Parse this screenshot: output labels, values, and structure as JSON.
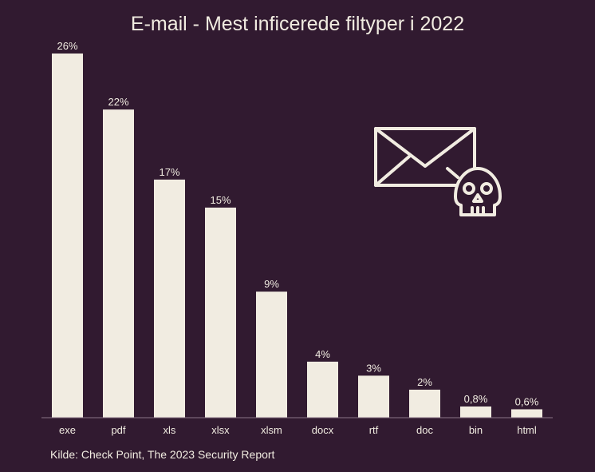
{
  "chart_data": {
    "type": "bar",
    "title": "E-mail - Mest inficerede filtyper i 2022",
    "categories": [
      "exe",
      "pdf",
      "xls",
      "xlsx",
      "xlsm",
      "docx",
      "rtf",
      "doc",
      "bin",
      "html"
    ],
    "values": [
      26,
      22,
      17,
      15,
      9,
      4,
      3,
      2,
      0.8,
      0.6
    ],
    "value_labels": [
      "26%",
      "22%",
      "17%",
      "15%",
      "9%",
      "4%",
      "3%",
      "2%",
      "0,8%",
      "0,6%"
    ],
    "xlabel": "",
    "ylabel": "",
    "ylim": [
      0,
      26
    ],
    "grid": false,
    "legend": "none"
  },
  "source": "Kilde: Check Point, The 2023 Security Report",
  "icon": "envelope-skull-icon",
  "colors": {
    "background": "#311a30",
    "bar": "#f1ece1",
    "text": "#f1ece1",
    "axis": "#8a7588"
  }
}
